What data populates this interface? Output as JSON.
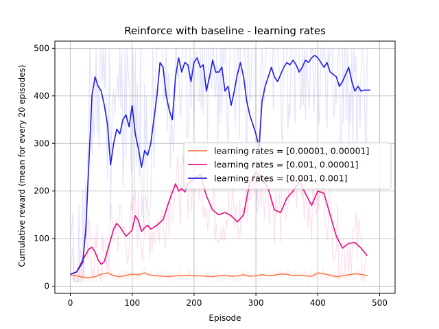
{
  "chart_data": {
    "type": "line",
    "title": "Reinforce with baseline  - learning rates",
    "xlabel": "Episode",
    "ylabel": "Cumulative reward (mean for every 20 episodes)",
    "xlim": [
      -25,
      525
    ],
    "ylim": [
      -15,
      515
    ],
    "xticks": [
      0,
      100,
      200,
      300,
      400,
      500
    ],
    "yticks": [
      0,
      100,
      200,
      300,
      400,
      500
    ],
    "grid": true,
    "legend_position": "center-right",
    "series": [
      {
        "name": "learning rates = [0.00001, 0.00001]",
        "color": "#ff7f50",
        "x": [
          0,
          10,
          20,
          30,
          40,
          50,
          60,
          70,
          80,
          90,
          100,
          110,
          120,
          130,
          140,
          150,
          160,
          170,
          180,
          190,
          200,
          210,
          220,
          230,
          240,
          250,
          260,
          270,
          280,
          290,
          300,
          310,
          320,
          330,
          340,
          350,
          360,
          370,
          380,
          390,
          400,
          410,
          420,
          430,
          440,
          450,
          460,
          470,
          480
        ],
        "y": [
          24,
          22,
          19,
          18,
          20,
          25,
          28,
          22,
          20,
          23,
          25,
          24,
          28,
          23,
          22,
          21,
          20,
          22,
          22,
          23,
          22,
          22,
          21,
          20,
          22,
          23,
          21,
          22,
          24,
          21,
          22,
          24,
          22,
          23,
          26,
          25,
          22,
          23,
          22,
          21,
          28,
          26,
          23,
          20,
          22,
          24,
          26,
          25,
          22
        ]
      },
      {
        "name": "learning rates = [0.001, 0.00001]",
        "color": "#e8127f",
        "x": [
          0,
          10,
          20,
          30,
          35,
          40,
          45,
          50,
          55,
          60,
          70,
          75,
          80,
          90,
          100,
          105,
          110,
          115,
          120,
          125,
          130,
          140,
          150,
          160,
          170,
          175,
          180,
          185,
          190,
          200,
          210,
          220,
          230,
          240,
          250,
          260,
          270,
          280,
          290,
          300,
          310,
          320,
          330,
          340,
          350,
          360,
          370,
          380,
          390,
          400,
          410,
          420,
          430,
          440,
          450,
          460,
          470,
          480
        ],
        "y": [
          25,
          30,
          55,
          78,
          82,
          72,
          55,
          46,
          52,
          75,
          120,
          132,
          125,
          105,
          118,
          148,
          138,
          115,
          123,
          128,
          120,
          128,
          140,
          180,
          215,
          200,
          205,
          198,
          215,
          225,
          235,
          190,
          160,
          150,
          155,
          148,
          135,
          150,
          218,
          240,
          225,
          205,
          160,
          155,
          185,
          200,
          220,
          195,
          170,
          200,
          195,
          150,
          105,
          80,
          90,
          92,
          80,
          64
        ]
      },
      {
        "name": "learning rates = [0.001, 0.001]",
        "color": "#2424e6",
        "x": [
          0,
          10,
          20,
          25,
          30,
          35,
          40,
          45,
          50,
          55,
          60,
          65,
          70,
          75,
          80,
          85,
          90,
          95,
          100,
          105,
          110,
          115,
          120,
          125,
          130,
          135,
          140,
          145,
          150,
          155,
          160,
          165,
          170,
          175,
          180,
          185,
          190,
          195,
          200,
          205,
          210,
          215,
          220,
          225,
          230,
          235,
          240,
          245,
          250,
          255,
          260,
          265,
          270,
          275,
          280,
          285,
          290,
          295,
          300,
          305,
          310,
          315,
          320,
          325,
          330,
          335,
          340,
          345,
          350,
          355,
          360,
          365,
          370,
          375,
          380,
          385,
          390,
          395,
          400,
          405,
          410,
          415,
          420,
          425,
          430,
          435,
          440,
          445,
          450,
          455,
          460,
          465,
          470,
          475,
          480,
          485
        ],
        "y": [
          25,
          30,
          50,
          120,
          260,
          400,
          440,
          420,
          410,
          380,
          340,
          255,
          300,
          330,
          320,
          350,
          360,
          335,
          380,
          320,
          290,
          250,
          285,
          275,
          300,
          350,
          400,
          470,
          460,
          400,
          370,
          350,
          440,
          480,
          450,
          470,
          465,
          430,
          470,
          480,
          460,
          465,
          410,
          440,
          475,
          450,
          450,
          460,
          410,
          420,
          380,
          410,
          445,
          470,
          440,
          390,
          360,
          340,
          320,
          290,
          390,
          420,
          440,
          460,
          440,
          430,
          445,
          460,
          470,
          465,
          475,
          465,
          450,
          460,
          475,
          470,
          480,
          485,
          480,
          470,
          460,
          470,
          450,
          445,
          440,
          420,
          430,
          445,
          460,
          430,
          410,
          420,
          410,
          412,
          412,
          412
        ]
      }
    ]
  }
}
